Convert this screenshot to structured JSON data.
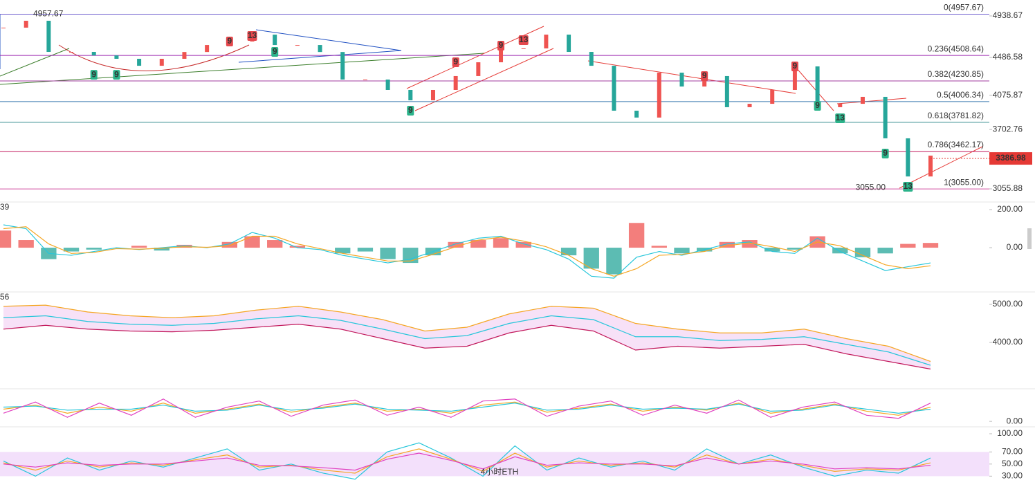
{
  "chart_data": [
    {
      "type": "candle",
      "ylim": [
        2928,
        5112
      ],
      "yticks": [
        4938.67,
        4486.58,
        4075.87,
        3702.76,
        3055.88
      ],
      "up_color": "#ef5350",
      "down_color": "#26a69a",
      "values": [
        4811,
        4886,
        4547,
        4547,
        4509,
        4472,
        4396,
        4472,
        4546,
        4622,
        4660,
        4735,
        4622,
        4622,
        4546,
        4246,
        4246,
        4133,
        4020,
        4133,
        4284,
        4434,
        4585,
        4585,
        4735,
        4547,
        4396,
        3907,
        3832,
        4321,
        4170,
        4284,
        3945,
        3982,
        4133,
        4389,
        3945,
        3982,
        4058,
        3606,
        3191,
        3418
      ],
      "high": 4957.67,
      "low": {
        "value": 3055,
        "label": "3055.00"
      },
      "last": 3386.98,
      "fib_levels": [
        {
          "label": "0(4957.67)",
          "value": 4957.67,
          "color": "#6a5acd"
        },
        {
          "label": "0.236(4508.64)",
          "value": 4508.64,
          "color": "#9c27b0"
        },
        {
          "label": "0.382(4230.85)",
          "value": 4230.85,
          "color": "#a23b9f"
        },
        {
          "label": "0.5(4006.34)",
          "value": 4006.34,
          "color": "#3a7ab0"
        },
        {
          "label": "0.618(3781.82)",
          "value": 3781.82,
          "color": "#2e8a8c"
        },
        {
          "label": "0.786(3462.17)",
          "value": 3462.17,
          "color": "#c2185b"
        },
        {
          "label": "1(3055.00)",
          "value": 3055,
          "color": "#d04fa0"
        }
      ],
      "markers": [
        {
          "label": "9",
          "at": 4,
          "price": 4298,
          "color": "#2bb38a"
        },
        {
          "label": "9",
          "at": 5,
          "price": 4298,
          "color": "#2bb38a"
        },
        {
          "label": "9",
          "at": 10,
          "price": 4660,
          "color": "#e5484d"
        },
        {
          "label": "13",
          "at": 11,
          "price": 4720,
          "color": "#e5484d"
        },
        {
          "label": "9",
          "at": 12,
          "price": 4547,
          "color": "#2bb38a"
        },
        {
          "label": "9",
          "at": 18,
          "price": 3907,
          "color": "#2bb38a"
        },
        {
          "label": "9",
          "at": 20,
          "price": 4434,
          "color": "#e5484d"
        },
        {
          "label": "9",
          "at": 22,
          "price": 4615,
          "color": "#e5484d"
        },
        {
          "label": "13",
          "at": 23,
          "price": 4675,
          "color": "#e5484d"
        },
        {
          "label": "9",
          "at": 31,
          "price": 4284,
          "color": "#e5484d"
        },
        {
          "label": "9",
          "at": 35,
          "price": 4389,
          "color": "#e5484d"
        },
        {
          "label": "9",
          "at": 36,
          "price": 3960,
          "color": "#2bb38a"
        },
        {
          "label": "13",
          "at": 37,
          "price": 3824,
          "color": "#2bb38a"
        },
        {
          "label": "9",
          "at": 39,
          "price": 3440,
          "color": "#2bb38a"
        },
        {
          "label": "13",
          "at": 40,
          "price": 3079,
          "color": "#2bb38a"
        }
      ]
    },
    {
      "type": "macd",
      "title": "39",
      "ylim": [
        -225,
        229
      ],
      "yticks": [
        {
          "value": 200,
          "label": "200.00"
        },
        {
          "value": 0,
          "label": "0.00"
        }
      ],
      "values": [
        90,
        40,
        -60,
        -20,
        -10,
        0,
        10,
        -15,
        15,
        0,
        30,
        60,
        40,
        10,
        0,
        -30,
        -20,
        -60,
        -80,
        -40,
        30,
        40,
        50,
        30,
        0,
        -40,
        -110,
        -140,
        130,
        10,
        -30,
        -20,
        30,
        40,
        -20,
        -10,
        60,
        -30,
        -50,
        -30,
        20,
        25
      ],
      "series": [
        {
          "color": "#26c6da",
          "values": [
            120,
            100,
            -30,
            -40,
            -20,
            0,
            -10,
            0,
            10,
            0,
            20,
            80,
            50,
            0,
            -10,
            -40,
            -60,
            -80,
            -60,
            -20,
            20,
            50,
            60,
            20,
            -10,
            -60,
            -150,
            -160,
            -50,
            -20,
            -40,
            -10,
            20,
            30,
            -20,
            -30,
            50,
            -20,
            -70,
            -120,
            -100,
            -80
          ]
        },
        {
          "color": "#f5a623",
          "values": [
            100,
            110,
            20,
            -30,
            -25,
            -5,
            -8,
            -3,
            5,
            2,
            10,
            60,
            60,
            20,
            -5,
            -30,
            -50,
            -70,
            -70,
            -35,
            5,
            40,
            55,
            35,
            5,
            -40,
            -110,
            -150,
            -110,
            -40,
            -35,
            -20,
            10,
            25,
            5,
            -20,
            30,
            10,
            -40,
            -90,
            -110,
            -95
          ]
        }
      ]
    },
    {
      "type": "bollinger",
      "title": "56",
      "ylim": [
        2909,
        5273
      ],
      "yticks": [
        {
          "value": 5000,
          "label": "5000.00"
        },
        {
          "value": 4000,
          "label": "4000.00"
        }
      ],
      "series": [
        {
          "color": "#f5a623",
          "values": [
            4950,
            4980,
            4800,
            4700,
            4650,
            4700,
            4850,
            4950,
            4800,
            4600,
            4300,
            4400,
            4750,
            4950,
            4900,
            4500,
            4350,
            4250,
            4250,
            4350,
            4100,
            3900,
            3500
          ]
        },
        {
          "color": "#26c6da",
          "values": [
            4650,
            4700,
            4550,
            4480,
            4450,
            4500,
            4620,
            4700,
            4580,
            4350,
            4100,
            4180,
            4500,
            4700,
            4600,
            4150,
            4150,
            4050,
            4080,
            4150,
            3950,
            3750,
            3400
          ]
        },
        {
          "color": "#c2185b",
          "values": [
            4350,
            4450,
            4350,
            4300,
            4280,
            4320,
            4400,
            4480,
            4350,
            4100,
            3850,
            3900,
            4250,
            4450,
            4300,
            3800,
            3900,
            3850,
            3900,
            3950,
            3700,
            3500,
            3300
          ]
        }
      ]
    },
    {
      "type": "oscillator",
      "ylim": [
        -20,
        150
      ],
      "yticks": [
        {
          "value": 0,
          "label": "0.00"
        }
      ],
      "series": [
        {
          "color": "#f5a623",
          "values": [
            60,
            80,
            40,
            70,
            50,
            90,
            40,
            60,
            85,
            45,
            70,
            90,
            50,
            60,
            40,
            80,
            95,
            45,
            65,
            85,
            50,
            70,
            55,
            90,
            40,
            60,
            85,
            50,
            30,
            70
          ]
        },
        {
          "color": "#26c6da",
          "values": [
            70,
            75,
            55,
            60,
            60,
            80,
            50,
            55,
            80,
            55,
            65,
            85,
            60,
            55,
            50,
            70,
            90,
            55,
            60,
            80,
            60,
            65,
            60,
            85,
            50,
            55,
            80,
            60,
            40,
            60
          ]
        },
        {
          "color": "#e040c0",
          "values": [
            40,
            95,
            20,
            90,
            30,
            110,
            20,
            70,
            100,
            25,
            80,
            105,
            30,
            70,
            20,
            100,
            110,
            25,
            75,
            100,
            30,
            80,
            40,
            105,
            20,
            70,
            95,
            30,
            15,
            90
          ]
        }
      ]
    },
    {
      "type": "rsi",
      "title": "4小时ETH",
      "ylim": [
        3,
        108
      ],
      "band": [
        30,
        70
      ],
      "yticks": [
        {
          "value": 100,
          "label": "100.00"
        },
        {
          "value": 70,
          "label": "70.00"
        },
        {
          "value": 50,
          "label": "50.00"
        },
        {
          "value": 30,
          "label": "30.00"
        }
      ],
      "series": [
        {
          "color": "#26c6da",
          "values": [
            55,
            30,
            60,
            40,
            55,
            45,
            60,
            75,
            40,
            50,
            35,
            25,
            70,
            85,
            60,
            30,
            80,
            40,
            60,
            45,
            55,
            40,
            75,
            50,
            65,
            45,
            30,
            40,
            35,
            60
          ]
        },
        {
          "color": "#f5a623",
          "values": [
            52,
            40,
            55,
            45,
            52,
            48,
            57,
            65,
            45,
            48,
            40,
            35,
            62,
            75,
            58,
            38,
            68,
            45,
            55,
            48,
            52,
            45,
            65,
            50,
            58,
            48,
            38,
            42,
            40,
            52
          ]
        },
        {
          "color": "#e040c0",
          "values": [
            50,
            45,
            52,
            48,
            50,
            50,
            55,
            60,
            48,
            47,
            44,
            40,
            58,
            68,
            56,
            42,
            62,
            48,
            52,
            50,
            50,
            47,
            60,
            50,
            55,
            50,
            42,
            44,
            42,
            48
          ]
        }
      ]
    }
  ]
}
